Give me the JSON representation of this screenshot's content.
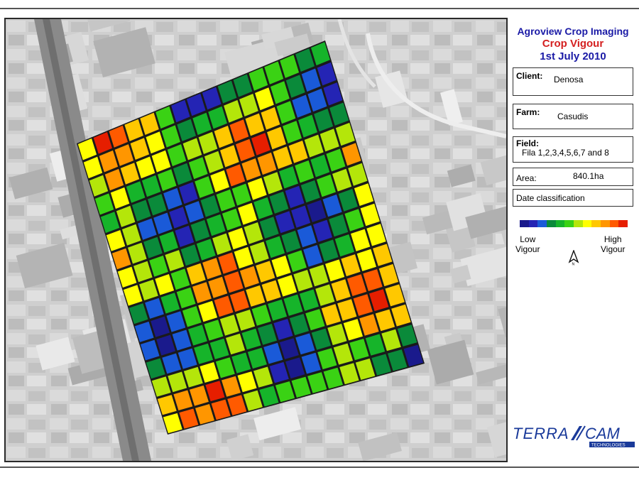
{
  "title": {
    "line1": "Agroview Crop Imaging",
    "line2": "Crop Vigour",
    "line3": "1st July 2010"
  },
  "colors": {
    "title_blue": "#1a1aa6",
    "title_red": "#d42020"
  },
  "client": {
    "label": "Client:",
    "value": "Denosa"
  },
  "farm": {
    "label": "Farm:",
    "value": "Casudis"
  },
  "field": {
    "label": "Field:",
    "value": "Fila 1,2,3,4,5,6,7 and 8"
  },
  "area": {
    "label": "Area:",
    "value": "840.1ha"
  },
  "date_classification": "Date classification",
  "legend": {
    "low_line1": "Low",
    "low_line2": "Vigour",
    "high_line1": "High",
    "high_line2": "Vigour",
    "colors": [
      "#1a1a8c",
      "#2424b4",
      "#1a5ad8",
      "#0a8a3a",
      "#16b42a",
      "#3ad214",
      "#b4e60a",
      "#ffff00",
      "#ffc800",
      "#ff9600",
      "#ff5a00",
      "#e61e00"
    ]
  },
  "north_icon": "north-arrow-icon",
  "logo": {
    "text_left": "TERRA",
    "text_right": "CAM",
    "sub": "TECHNOLOGIES"
  }
}
